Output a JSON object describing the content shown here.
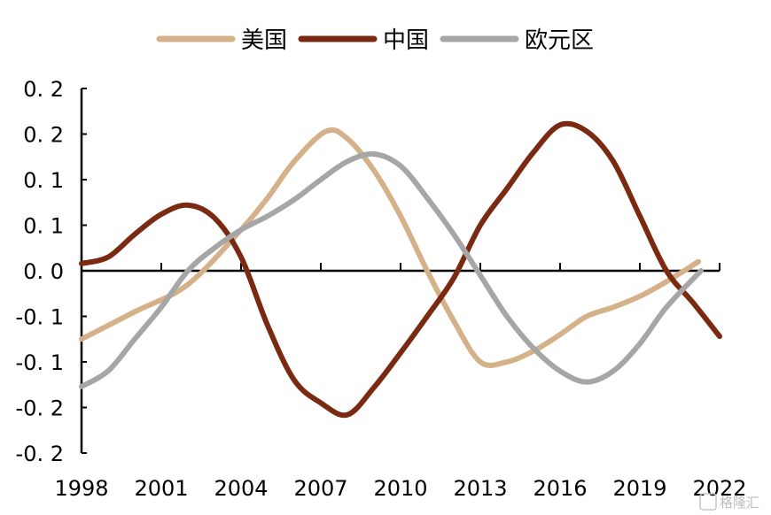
{
  "chart_data": {
    "type": "line",
    "title": "",
    "xlabel": "",
    "ylabel": "",
    "xlim": [
      1998,
      2022
    ],
    "ylim": [
      -0.2,
      0.2
    ],
    "x_tick_values": [
      1998,
      2001,
      2004,
      2007,
      2010,
      2013,
      2016,
      2019,
      2022
    ],
    "x_tick_labels": [
      "1998",
      "2001",
      "2004",
      "2007",
      "2010",
      "2013",
      "2016",
      "2019",
      "2022"
    ],
    "y_tick_values": [
      0.2,
      0.15,
      0.1,
      0.05,
      0.0,
      -0.05,
      -0.1,
      -0.15,
      -0.2
    ],
    "y_tick_labels": [
      "0. 2",
      "0. 2",
      "0. 1",
      "0. 1",
      "0. 0",
      "-0. 1",
      "-0. 1",
      "-0. 2",
      "-0. 2"
    ],
    "grid": false,
    "legend": "top",
    "series": [
      {
        "name": "美国",
        "color": "#D5B18A",
        "x": [
          1998,
          2000,
          2002,
          2004,
          2005,
          2006,
          2007.2,
          2008,
          2009,
          2010,
          2011,
          2012,
          2013,
          2014,
          2015,
          2016,
          2017,
          2018,
          2019,
          2020,
          2021.2
        ],
        "y": [
          -0.075,
          -0.045,
          -0.015,
          0.045,
          0.08,
          0.12,
          0.153,
          0.145,
          0.11,
          0.06,
          0.0,
          -0.055,
          -0.1,
          -0.1,
          -0.088,
          -0.07,
          -0.05,
          -0.04,
          -0.028,
          -0.012,
          0.01
        ]
      },
      {
        "name": "中国",
        "color": "#7B2A12",
        "x": [
          1998,
          1999,
          2000,
          2001,
          2002,
          2003,
          2004,
          2005,
          2006,
          2007,
          2008,
          2009,
          2010,
          2011,
          2012,
          2013,
          2014,
          2015,
          2016,
          2017,
          2018,
          2019,
          2020,
          2021,
          2022
        ],
        "y": [
          0.008,
          0.015,
          0.04,
          0.062,
          0.072,
          0.058,
          0.015,
          -0.06,
          -0.12,
          -0.145,
          -0.158,
          -0.128,
          -0.09,
          -0.05,
          -0.008,
          0.05,
          0.09,
          0.13,
          0.16,
          0.153,
          0.12,
          0.06,
          0.0,
          -0.035,
          -0.072
        ]
      },
      {
        "name": "欧元区",
        "color": "#A6A6A6",
        "x": [
          1998,
          1999,
          2000,
          2001,
          2002,
          2003,
          2004,
          2005,
          2006,
          2007,
          2008,
          2009,
          2010,
          2011,
          2012,
          2013,
          2014,
          2015,
          2016,
          2017,
          2018,
          2019,
          2020,
          2021.3
        ],
        "y": [
          -0.127,
          -0.11,
          -0.075,
          -0.04,
          0.0,
          0.025,
          0.045,
          0.06,
          0.078,
          0.1,
          0.12,
          0.128,
          0.115,
          0.08,
          0.04,
          -0.005,
          -0.05,
          -0.085,
          -0.11,
          -0.122,
          -0.11,
          -0.08,
          -0.04,
          0.0
        ]
      }
    ]
  },
  "watermark": "格隆汇"
}
